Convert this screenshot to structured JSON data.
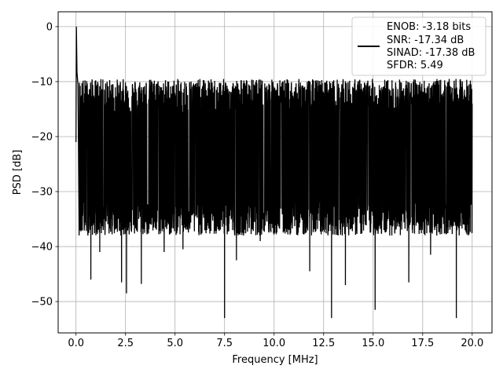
{
  "chart_data": {
    "type": "line",
    "title": "",
    "xlabel": "Frequency [MHz]",
    "ylabel": "PSD [dB]",
    "xlim": [
      -0.9,
      21.0
    ],
    "ylim": [
      -55.7,
      2.7
    ],
    "xticks": [
      0.0,
      2.5,
      5.0,
      7.5,
      10.0,
      12.5,
      15.0,
      17.5,
      20.0
    ],
    "xtick_labels": [
      "0.0",
      "2.5",
      "5.0",
      "7.5",
      "10.0",
      "12.5",
      "15.0",
      "17.5",
      "20.0"
    ],
    "yticks": [
      0,
      -10,
      -20,
      -30,
      -40,
      -50
    ],
    "ytick_labels": [
      "0",
      "−10",
      "−20",
      "−30",
      "−40",
      "−50"
    ],
    "grid": true,
    "legend_position": "top-right",
    "series": [
      {
        "name": "ENOB: -3.18 bits\nSNR: -17.34 dB\nSINAD: -17.38 dB\nSFDR: 5.49",
        "color": "#000000",
        "x_range": [
          0.0,
          20.0
        ],
        "noise_floor_db": [
          -14.0,
          -34.0
        ],
        "peak": {
          "x": 0.02,
          "y": 0.0
        },
        "spurs": [
          {
            "x": 0.05,
            "y": -8.3
          },
          {
            "x": 0.1,
            "y": -10.5
          },
          {
            "x": 0.2,
            "y": -13.0
          }
        ],
        "dips": [
          {
            "x": 0.3,
            "y": -37.0
          },
          {
            "x": 0.75,
            "y": -46.0
          },
          {
            "x": 1.2,
            "y": -41.0
          },
          {
            "x": 2.3,
            "y": -46.5
          },
          {
            "x": 2.55,
            "y": -48.5
          },
          {
            "x": 3.3,
            "y": -46.8
          },
          {
            "x": 4.45,
            "y": -41.0
          },
          {
            "x": 5.4,
            "y": -40.5
          },
          {
            "x": 7.5,
            "y": -53.0
          },
          {
            "x": 8.1,
            "y": -42.5
          },
          {
            "x": 9.3,
            "y": -39.0
          },
          {
            "x": 11.8,
            "y": -44.5
          },
          {
            "x": 12.9,
            "y": -53.0
          },
          {
            "x": 13.6,
            "y": -47.0
          },
          {
            "x": 15.1,
            "y": -51.5
          },
          {
            "x": 16.8,
            "y": -46.5
          },
          {
            "x": 17.9,
            "y": -41.5
          },
          {
            "x": 19.2,
            "y": -53.0
          }
        ]
      }
    ]
  },
  "legend": {
    "lines": [
      "ENOB: -3.18 bits",
      "SNR: -17.34 dB",
      "SINAD: -17.38 dB",
      "SFDR: 5.49"
    ]
  }
}
